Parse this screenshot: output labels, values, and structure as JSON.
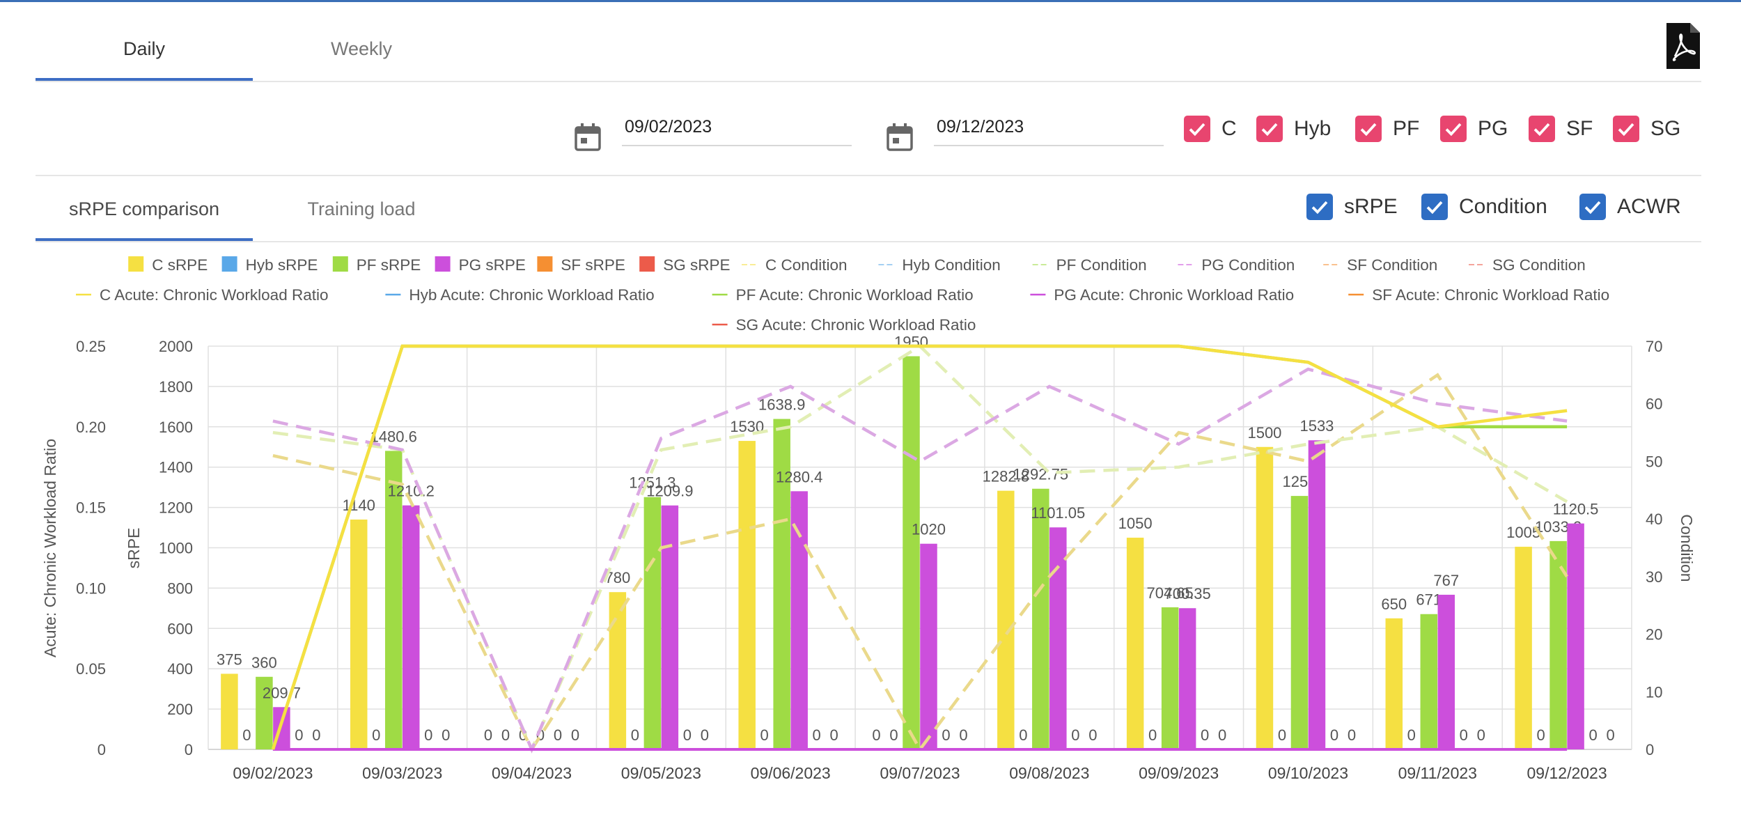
{
  "tabs": {
    "daily": "Daily",
    "weekly": "Weekly"
  },
  "dates": {
    "start": "09/02/2023",
    "end": "09/12/2023"
  },
  "positions": [
    {
      "label": "C",
      "checked": true
    },
    {
      "label": "Hyb",
      "checked": true
    },
    {
      "label": "PF",
      "checked": true
    },
    {
      "label": "PG",
      "checked": true
    },
    {
      "label": "SF",
      "checked": true
    },
    {
      "label": "SG",
      "checked": true
    }
  ],
  "subtabs": {
    "srpe": "sRPE comparison",
    "load": "Training load"
  },
  "metrics": [
    {
      "label": "sRPE",
      "checked": true
    },
    {
      "label": "Condition",
      "checked": true
    },
    {
      "label": "ACWR",
      "checked": true
    }
  ],
  "colors": {
    "C": "#f5e042",
    "Hyb": "#5aa8e8",
    "PF": "#9fdb45",
    "PG": "#cc4fdc",
    "SF": "#f58f32",
    "SG": "#ec5b4a",
    "accent": "#3d6ec4",
    "checkbox_pink": "#e8456f",
    "checkbox_blue": "#2e6dc3"
  },
  "chart_data": {
    "type": "bar",
    "categories": [
      "09/02/2023",
      "09/03/2023",
      "09/04/2023",
      "09/05/2023",
      "09/06/2023",
      "09/07/2023",
      "09/08/2023",
      "09/09/2023",
      "09/10/2023",
      "09/11/2023",
      "09/12/2023"
    ],
    "legend": [
      {
        "name": "C sRPE",
        "kind": "bar",
        "group": "C"
      },
      {
        "name": "Hyb sRPE",
        "kind": "bar",
        "group": "Hyb"
      },
      {
        "name": "PF sRPE",
        "kind": "bar",
        "group": "PF"
      },
      {
        "name": "PG sRPE",
        "kind": "bar",
        "group": "PG"
      },
      {
        "name": "SF sRPE",
        "kind": "bar",
        "group": "SF"
      },
      {
        "name": "SG sRPE",
        "kind": "bar",
        "group": "SG"
      },
      {
        "name": "C Condition",
        "kind": "dash",
        "group": "C"
      },
      {
        "name": "Hyb Condition",
        "kind": "dash",
        "group": "Hyb"
      },
      {
        "name": "PF Condition",
        "kind": "dash",
        "group": "PF"
      },
      {
        "name": "PG Condition",
        "kind": "dash",
        "group": "PG"
      },
      {
        "name": "SF Condition",
        "kind": "dash",
        "group": "SF"
      },
      {
        "name": "SG Condition",
        "kind": "dash",
        "group": "SG"
      },
      {
        "name": "C Acute: Chronic Workload Ratio",
        "kind": "line",
        "group": "C"
      },
      {
        "name": "Hyb Acute: Chronic Workload Ratio",
        "kind": "line",
        "group": "Hyb"
      },
      {
        "name": "PF Acute: Chronic Workload Ratio",
        "kind": "line",
        "group": "PF"
      },
      {
        "name": "PG Acute: Chronic Workload Ratio",
        "kind": "line",
        "group": "PG"
      },
      {
        "name": "SF Acute: Chronic Workload Ratio",
        "kind": "line",
        "group": "SF"
      },
      {
        "name": "SG Acute: Chronic Workload Ratio",
        "kind": "line",
        "group": "SG"
      }
    ],
    "srpe": {
      "C": [
        375,
        1140,
        0,
        780,
        1530,
        0,
        1282.8,
        1050,
        1500,
        650,
        1005
      ],
      "Hyb": [
        0,
        0,
        0,
        0,
        0,
        0,
        0,
        0,
        0,
        0,
        0
      ],
      "PF": [
        360,
        1480.6,
        0,
        1251.3,
        1638.9,
        1950,
        1292.75,
        704.65,
        1257,
        671,
        1033.2
      ],
      "PG": [
        209.7,
        1210.2,
        0,
        1209.9,
        1280.4,
        1020,
        1101.05,
        700.35,
        1533,
        767,
        1120.5
      ],
      "SF": [
        0,
        0,
        0,
        0,
        0,
        0,
        0,
        0,
        0,
        0,
        0
      ],
      "SG": [
        0,
        0,
        0,
        0,
        0,
        0,
        0,
        0,
        0,
        0,
        0
      ]
    },
    "srpe_labels": {
      "C": [
        "375",
        "1140",
        "0",
        "780",
        "1530",
        "0",
        "1282.8",
        "1050",
        "1500",
        "650",
        "1005"
      ],
      "Hyb": [
        "0",
        "0",
        "0",
        "0",
        "0",
        "0",
        "0",
        "0",
        "0",
        "0",
        "0"
      ],
      "PF": [
        "360",
        "1480.6",
        "0",
        "1251.3",
        "1638.9",
        "1950",
        "1292.75",
        "704.65",
        "1257",
        "671",
        "1033.2"
      ],
      "PG": [
        "209.7",
        "1210.2",
        "0",
        "1209.9",
        "1280.4",
        "1020",
        "1101.05",
        "700.35",
        "1533",
        "767",
        "1120.5"
      ],
      "SF": [
        "0",
        "0",
        "0",
        "0",
        "0",
        "0",
        "0",
        "0",
        "0",
        "0",
        "0"
      ],
      "SG": [
        "0",
        "0",
        "0",
        "0",
        "0",
        "0",
        "0",
        "0",
        "0",
        "0",
        "0"
      ]
    },
    "condition": {
      "C": [
        51,
        46,
        0,
        35,
        40,
        0,
        30,
        55,
        50,
        65,
        30
      ],
      "PF": [
        55,
        52,
        0,
        52,
        56,
        70,
        48,
        49,
        53,
        56,
        43
      ],
      "PG": [
        57,
        52,
        0,
        54,
        63,
        50,
        63,
        53,
        66,
        60,
        57
      ]
    },
    "acwr": {
      "C": [
        0,
        0.25,
        0.25,
        0.25,
        0.25,
        0.25,
        0.25,
        0.25,
        0.24,
        0.2,
        0.21
      ],
      "PF": [
        0,
        0.25,
        0.25,
        0.25,
        0.25,
        0.25,
        0.25,
        0.25,
        0.24,
        0.2,
        0.2
      ],
      "Hyb": [
        0,
        0,
        0,
        0,
        0,
        0,
        0,
        0,
        0,
        0,
        0
      ],
      "PG": [
        0,
        0,
        0,
        0,
        0,
        0,
        0,
        0,
        0,
        0,
        0
      ]
    },
    "ylabel_left": "Acute: Chronic Workload Ratio",
    "ylabel_srpe": "sRPE",
    "ylabel_right": "Condition",
    "acwr_ticks": [
      "0",
      "0.05",
      "0.10",
      "0.15",
      "0.20",
      "0.25"
    ],
    "srpe_ticks": [
      "0",
      "200",
      "400",
      "600",
      "800",
      "1000",
      "1200",
      "1400",
      "1600",
      "1800",
      "2000"
    ],
    "condition_ticks": [
      "0",
      "10",
      "20",
      "30",
      "40",
      "50",
      "60",
      "70"
    ],
    "ylim_srpe": [
      0,
      2000
    ],
    "ylim_acwr": [
      0,
      0.25
    ],
    "ylim_condition": [
      0,
      70
    ]
  }
}
